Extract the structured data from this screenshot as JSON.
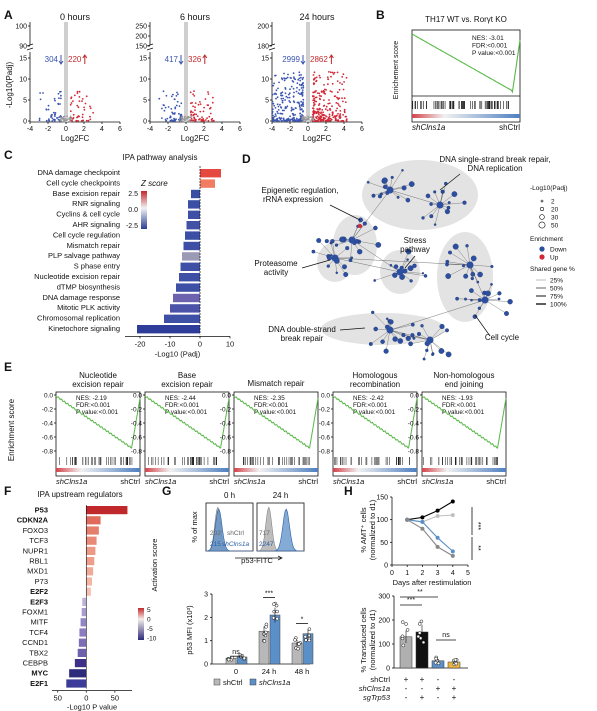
{
  "panels": {
    "A": {
      "label": "A",
      "ylabel": "-Log10(Padj)",
      "xlabel": "Log2FC",
      "plots": [
        {
          "title": "0 hours",
          "down": "304",
          "up": "220",
          "yticks_top": [
            "100",
            "90"
          ],
          "yticks_bot": [
            "15",
            "10",
            "5",
            "0"
          ],
          "xticks": [
            "-4",
            "-2",
            "0",
            "2",
            "4",
            "6"
          ]
        },
        {
          "title": "6 hours",
          "down": "417",
          "up": "326",
          "yticks_top": [
            "250",
            "200",
            "150"
          ],
          "yticks_bot": [
            "15",
            "10",
            "5",
            "0"
          ],
          "xticks": [
            "-4",
            "-2",
            "0",
            "2",
            "4",
            "6"
          ]
        },
        {
          "title": "24 hours",
          "down": "2999",
          "up": "2862",
          "yticks_top": [
            "200",
            "180"
          ],
          "yticks_bot": [
            "15",
            "10",
            "5",
            "0"
          ],
          "xticks": [
            "-4",
            "-2",
            "0",
            "2",
            "4",
            "6"
          ]
        }
      ]
    },
    "B": {
      "label": "B",
      "title": "TH17 WT vs. Rorγt KO",
      "ylabel": "Enrichement score",
      "stats": [
        "NES: -3.01",
        "FDR:<0.001",
        "P value:<0.001"
      ],
      "left": "shClns1a",
      "right": "shCtrl"
    },
    "C": {
      "label": "C",
      "title": "IPA pathway analysis",
      "legend_title": "Z score",
      "legend_ticks": [
        "2.5",
        "0.0",
        "-2.5"
      ],
      "xlabel": "-Log10 (Padj)",
      "xticks": [
        "-20",
        "-10",
        "0",
        "10"
      ],
      "chart_data": {
        "type": "bar",
        "categories": [
          "DNA damage checkpoint",
          "Cell cycle checkpoints",
          "Base excision repair",
          "RNR signaling",
          "Cyclins & cell cycle",
          "AHR signaling",
          "Cell cycle regulation",
          "Mismatch repair",
          "PLP salvage pathway",
          "S phase entry",
          "Nucleotide excision repair",
          "dTMP biosynthesis",
          "DNA damage response",
          "Mitotic PLK activity",
          "Chromosomal replication",
          "Kinetochore signaling"
        ],
        "values": [
          7,
          5,
          -3,
          -4,
          -4,
          -4.5,
          -5,
          -5.5,
          -6,
          -6.5,
          -7,
          -8,
          -9,
          -10,
          -12,
          -21
        ],
        "colors": [
          "#e5483e",
          "#f07d62",
          "#3a4ea3",
          "#3b4fa4",
          "#3d50a5",
          "#4151a6",
          "#3b4fa4",
          "#3d50a5",
          "#9a9ab5",
          "#3e50a5",
          "#3e50a5",
          "#3e50a5",
          "#6c62ad",
          "#4a53a8",
          "#3e50a5",
          "#2f3d9a"
        ],
        "xlim": [
          -25,
          10
        ]
      }
    },
    "D": {
      "label": "D",
      "annotations": [
        "DNA single-strand break repair, DNA replication",
        "Epigenetic regulation, rRNA expression",
        "Stress pathway",
        "Proteasome activity",
        "DNA double-strand break repair",
        "Cell cycle"
      ],
      "legend_size_title": "-Log10(Padj)",
      "legend_sizes": [
        "2",
        "20",
        "30",
        "50"
      ],
      "legend_enrich_title": "Enrichment",
      "legend_enrich": [
        "Down",
        "Up"
      ],
      "legend_shared_title": "Shared gene %",
      "legend_shared": [
        "25%",
        "50%",
        "75%",
        "100%"
      ]
    },
    "E": {
      "label": "E",
      "ylabel": "Enrichment score",
      "plots": [
        {
          "title": "Nucleotide excision repair",
          "stats": [
            "NES: -2.19",
            "FDR:<0.001",
            "P value:<0.001"
          ],
          "yticks": [
            "0.0",
            "-0.2",
            "-0.4",
            "-0.6",
            "-0.8"
          ]
        },
        {
          "title": "Base excision repair",
          "stats": [
            "NES: -2.44",
            "FDR:<0.001",
            "P value:<0.001"
          ],
          "yticks": [
            "0.0",
            "-0.2",
            "-0.4",
            "-0.6",
            "-0.8"
          ]
        },
        {
          "title": "Mismatch repair",
          "stats": [
            "NES: -2.35",
            "FDR:<0.001",
            "P value:<0.001"
          ],
          "yticks": [
            "0.0",
            "-0.2",
            "-0.4",
            "-0.6",
            "-0.8"
          ]
        },
        {
          "title": "Homologous recombination",
          "stats": [
            "NES: -2.42",
            "FDR:<0.001",
            "P value:<0.001"
          ],
          "yticks": [
            "0.0",
            "-0.2",
            "-0.4",
            "-0.6",
            "-0.8"
          ]
        },
        {
          "title": "Non-homologous end joining",
          "stats": [
            "NES: -1.93",
            "FDR:<0.001",
            "P value:<0.001"
          ],
          "yticks": [
            "0.0",
            "-0.2",
            "-0.4",
            "-0.6",
            "-0.8"
          ]
        }
      ],
      "left": "shClns1a",
      "right": "shCtrl"
    },
    "F": {
      "label": "F",
      "title": "IPA upstream regulators",
      "legend_title": "Activation score",
      "legend_ticks": [
        "5",
        "0",
        "-5",
        "-10"
      ],
      "xlabel": "-Log10 P value",
      "xticks": [
        "50",
        "0",
        "50"
      ],
      "chart_data": {
        "type": "bar",
        "categories": [
          "P53",
          "CDKN2A",
          "FOXO3",
          "TCF3",
          "NUPR1",
          "RBL1",
          "MXD1",
          "P73",
          "E2F2",
          "E2F3",
          "FOXM1",
          "MITF",
          "TCF4",
          "CCND1",
          "TBX2",
          "CEBPB",
          "MYC",
          "E2F1"
        ],
        "bold": [
          true,
          true,
          false,
          false,
          false,
          false,
          false,
          false,
          true,
          true,
          false,
          false,
          false,
          false,
          false,
          false,
          true,
          true
        ],
        "values": [
          72,
          25,
          22,
          18,
          16,
          14,
          12,
          10,
          8,
          -7,
          -8,
          -10,
          -12,
          -13,
          -15,
          -20,
          -30,
          -35
        ],
        "colors": [
          "#c0282b",
          "#e06b5c",
          "#e47f6c",
          "#e88a77",
          "#eb9a86",
          "#ee9f8b",
          "#f0aa96",
          "#f3b6a3",
          "#f4c1b0",
          "#bcb3d7",
          "#a99ccf",
          "#9386c4",
          "#8b7dbf",
          "#7e6eb6",
          "#6f60ae",
          "#3e2f88",
          "#2e2a7c",
          "#3b3c9a"
        ],
        "xlim": [
          -60,
          80
        ]
      }
    },
    "G": {
      "label": "G",
      "hist_ylabel": "% of max",
      "hist_xlabel": "p53-FITC",
      "hist_titles": [
        "0 h",
        "24 h"
      ],
      "hist_left": {
        "ctrl": "shCtrl",
        "ctrl_val": "202",
        "kd": "shClns1a",
        "kd_val": "215"
      },
      "hist_right": {
        "ctrl": "shCtrl",
        "ctrl_val": "717",
        "kd": "shClns1a",
        "kd_val": "2247"
      },
      "bar_ylabel": "p53 MFI (x10³)",
      "bar_yticks": [
        "0",
        "1",
        "2",
        "3"
      ],
      "bar_groups": [
        "0",
        "24 h",
        "48 h"
      ],
      "sig": [
        "ns",
        "***",
        "*"
      ],
      "legend": [
        "shCtrl",
        "shClns1a"
      ],
      "chart_data": {
        "type": "bar",
        "categories": [
          "0",
          "24 h",
          "48 h"
        ],
        "series": [
          {
            "name": "shCtrl",
            "values": [
              0.25,
              1.4,
              0.9
            ]
          },
          {
            "name": "shClns1a",
            "values": [
              0.3,
              2.1,
              1.3
            ]
          }
        ],
        "ylim": [
          0,
          3
        ]
      }
    },
    "H": {
      "label": "H",
      "line_ylabel": "% AMT+ cells (normalized to d1)",
      "line_xlabel": "Days after restimulation",
      "line_yticks": [
        "0",
        "50",
        "100",
        "150"
      ],
      "line_xticks": [
        "0",
        "1",
        "2",
        "3",
        "4",
        "5"
      ],
      "line_sig": [
        "***",
        "**"
      ],
      "line_data": {
        "type": "line",
        "x": [
          1,
          2,
          3,
          4
        ],
        "series": [
          {
            "values": [
              100,
              105,
              120,
              140
            ],
            "color": "#000000"
          },
          {
            "values": [
              100,
              95,
              108,
              110
            ],
            "color": "#c0c0c0"
          },
          {
            "values": [
              100,
              95,
              60,
              30
            ],
            "color": "#5b8fc7"
          },
          {
            "values": [
              100,
              80,
              40,
              20
            ],
            "color": "#888888"
          }
        ],
        "ylim": [
          0,
          150
        ]
      },
      "bar_ylabel": "% Transduced cells (normalized to d1)",
      "bar_yticks": [
        "0",
        "100",
        "200",
        "300"
      ],
      "bar_sig": [
        "**",
        "***",
        "ns"
      ],
      "row_labels": [
        "shCtrl",
        "shClns1a",
        "sgTrp53"
      ],
      "row_values": [
        [
          "+",
          "+",
          "-",
          "-"
        ],
        [
          "-",
          "-",
          "+",
          "+"
        ],
        [
          "-",
          "+",
          "-",
          "+"
        ]
      ],
      "chart_data": {
        "type": "bar",
        "categories": [
          "1",
          "2",
          "3",
          "4"
        ],
        "values": [
          130,
          150,
          30,
          25
        ],
        "colors": [
          "#b0b0b0",
          "#111111",
          "#5b8fc7",
          "#e9b544"
        ],
        "ylim": [
          0,
          300
        ]
      }
    }
  }
}
